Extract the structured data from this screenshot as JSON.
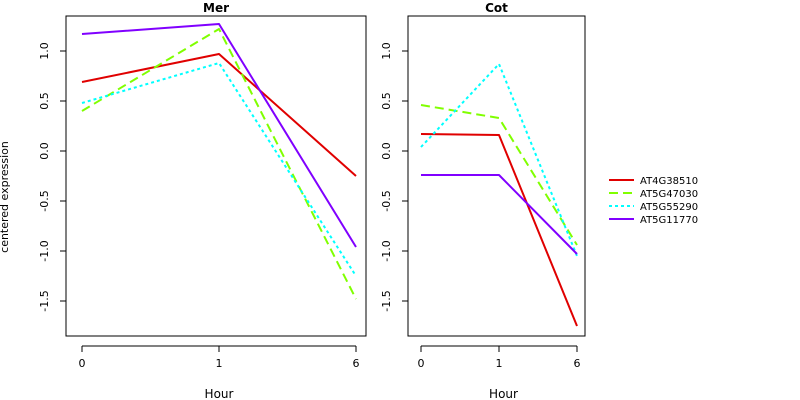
{
  "chart_data": {
    "type": "line",
    "ylabel": "centered expression",
    "legend": {
      "placement": "right",
      "entries": [
        {
          "name": "AT4G38510",
          "color": "#e00000",
          "dash": "solid"
        },
        {
          "name": "AT5G47030",
          "color": "#80ff00",
          "dash": "dashed"
        },
        {
          "name": "AT5G55290",
          "color": "#00ffff",
          "dash": "dotted"
        },
        {
          "name": "AT5G11770",
          "color": "#8000ff",
          "dash": "solid"
        }
      ]
    },
    "panels": [
      {
        "title": "Mer",
        "xlabel": "Hour",
        "x": [
          "0",
          "1",
          "6"
        ],
        "ylim": [
          -1.85,
          1.35
        ],
        "yticks": [
          "1.0",
          "0.5",
          "0.0",
          "-0.5",
          "-1.0",
          "-1.5"
        ],
        "series": [
          {
            "name": "AT4G38510",
            "values": [
              0.69,
              0.97,
              -0.25
            ]
          },
          {
            "name": "AT5G47030",
            "values": [
              0.4,
              1.22,
              -1.48
            ]
          },
          {
            "name": "AT5G55290",
            "values": [
              0.48,
              0.88,
              -1.25
            ]
          },
          {
            "name": "AT5G11770",
            "values": [
              1.17,
              1.27,
              -0.96
            ]
          }
        ]
      },
      {
        "title": "Cot",
        "xlabel": "Hour",
        "x": [
          "0",
          "1",
          "6"
        ],
        "ylim": [
          -1.85,
          1.35
        ],
        "yticks": [
          "1.0",
          "0.5",
          "0.0",
          "-0.5",
          "-1.0",
          "-1.5"
        ],
        "series": [
          {
            "name": "AT4G38510",
            "values": [
              0.17,
              0.16,
              -1.75
            ]
          },
          {
            "name": "AT5G47030",
            "values": [
              0.46,
              0.33,
              -0.94
            ]
          },
          {
            "name": "AT5G55290",
            "values": [
              0.04,
              0.87,
              -1.05
            ]
          },
          {
            "name": "AT5G11770",
            "values": [
              -0.24,
              -0.24,
              -1.03
            ]
          }
        ]
      }
    ]
  }
}
